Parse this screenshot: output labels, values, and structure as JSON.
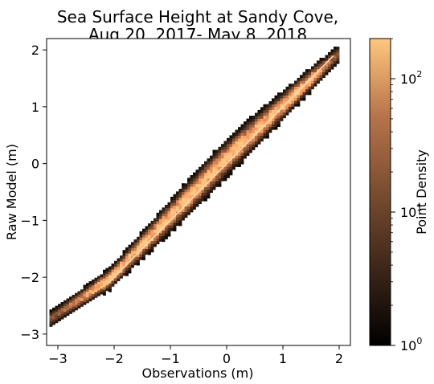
{
  "chart_data": {
    "type": "heatmap",
    "title_lines": [
      "Sea Surface Height at Sandy Cove,",
      "Aug 20, 2017- May 8, 2018"
    ],
    "xlabel": "Observations (m)",
    "ylabel": "Raw Model (m)",
    "xlim": [
      -3.2,
      2.2
    ],
    "ylim": [
      -3.2,
      2.2
    ],
    "x_ticks": [
      -3,
      -2,
      -1,
      0,
      1,
      2
    ],
    "x_tick_labels": [
      "−3",
      "−2",
      "−1",
      "0",
      "1",
      "2"
    ],
    "y_ticks": [
      -3,
      -2,
      -1,
      0,
      1,
      2
    ],
    "y_tick_labels": [
      "−3",
      "−2",
      "−1",
      "0",
      "1",
      "2"
    ],
    "reference_line": {
      "from": [
        -2.1,
        -2.1
      ],
      "to": [
        1.9,
        1.9
      ],
      "color": "#ffe0c0"
    },
    "density_band": {
      "x_range": [
        -3.15,
        1.95
      ],
      "centerline": [
        [
          -3.15,
          -2.75
        ],
        [
          -2.1,
          -2.05
        ],
        [
          0,
          0.1
        ],
        [
          1.95,
          1.9
        ]
      ],
      "bin_size": 0.05,
      "peak_density": 200
    },
    "colorbar": {
      "label": "Point Density",
      "scale": "log",
      "range": [
        1,
        200
      ],
      "colormap": "copper",
      "tick_exponents": [
        "0",
        "1",
        "2"
      ],
      "tick_values": [
        1,
        10,
        100
      ]
    },
    "colors": {
      "low": "#000000",
      "high": "#ffc77f"
    }
  }
}
